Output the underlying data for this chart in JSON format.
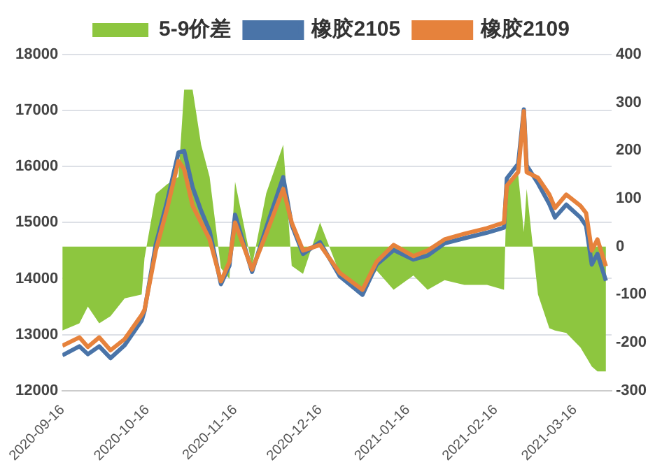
{
  "chart_data": {
    "type": "line",
    "x": [
      "2020-09-16",
      "2020-09-22",
      "2020-09-25",
      "2020-09-29",
      "2020-10-03",
      "2020-10-08",
      "2020-10-14",
      "2020-10-15",
      "2020-10-19",
      "2020-10-23",
      "2020-10-27",
      "2020-10-29",
      "2020-11-01",
      "2020-11-04",
      "2020-11-07",
      "2020-11-11",
      "2020-11-14",
      "2020-11-16",
      "2020-11-22",
      "2020-11-27",
      "2020-12-03",
      "2020-12-06",
      "2020-12-10",
      "2020-12-16",
      "2020-12-23",
      "2020-12-31",
      "2021-01-05",
      "2021-01-11",
      "2021-01-18",
      "2021-01-23",
      "2021-01-29",
      "2021-02-05",
      "2021-02-13",
      "2021-02-19",
      "2021-02-20",
      "2021-02-24",
      "2021-02-26",
      "2021-02-27",
      "2021-03-03",
      "2021-03-07",
      "2021-03-09",
      "2021-03-13",
      "2021-03-18",
      "2021-03-20",
      "2021-03-22",
      "2021-03-24",
      "2021-03-27"
    ],
    "series": [
      {
        "name": "5-9价差",
        "type": "area",
        "axis": "y2",
        "color": "#8dc63f",
        "values": [
          -175,
          -160,
          -125,
          -160,
          -145,
          -108,
          -100,
          -24,
          110,
          130,
          145,
          327,
          327,
          212,
          145,
          -45,
          -67,
          135,
          -40,
          111,
          212,
          -40,
          -57,
          50,
          -57,
          -90,
          -50,
          -90,
          -60,
          -90,
          -70,
          -80,
          -80,
          -90,
          128,
          150,
          30,
          120,
          -100,
          -170,
          -175,
          -180,
          -210,
          -230,
          -250,
          -260,
          -260
        ]
      },
      {
        "name": "橡胶2105",
        "type": "line",
        "color": "#4a74a8",
        "values": [
          12630,
          12790,
          12650,
          12790,
          12580,
          12810,
          13250,
          13420,
          14610,
          15380,
          16250,
          16280,
          15630,
          15210,
          14850,
          13900,
          14230,
          15140,
          14120,
          14910,
          15810,
          14960,
          14440,
          14650,
          14040,
          13710,
          14250,
          14510,
          14340,
          14410,
          14630,
          14720,
          14820,
          14910,
          15790,
          16050,
          17020,
          16020,
          15700,
          15330,
          15090,
          15320,
          15090,
          14940,
          14250,
          14440,
          13960
        ]
      },
      {
        "name": "橡胶2109",
        "type": "line",
        "color": "#e6823c",
        "values": [
          12800,
          12950,
          12780,
          12950,
          12720,
          12920,
          13350,
          13440,
          14500,
          15250,
          16100,
          15950,
          15300,
          15000,
          14700,
          13950,
          14300,
          15000,
          14160,
          14800,
          15600,
          15000,
          14500,
          14600,
          14100,
          13800,
          14300,
          14600,
          14400,
          14500,
          14700,
          14800,
          14900,
          15000,
          15660,
          15900,
          16990,
          15900,
          15800,
          15500,
          15260,
          15500,
          15300,
          15170,
          14500,
          14700,
          14220
        ]
      }
    ],
    "xlim": [
      "2020-09-16",
      "2021-03-29"
    ],
    "xticks": [
      "2020-09-16",
      "2020-10-16",
      "2020-11-16",
      "2020-12-16",
      "2021-01-16",
      "2021-02-16",
      "2021-03-16"
    ],
    "ylim": [
      12000,
      18000
    ],
    "yticks": [
      12000,
      13000,
      14000,
      15000,
      16000,
      17000,
      18000
    ],
    "y2lim": [
      -300,
      400
    ],
    "y2ticks": [
      -300,
      -200,
      -100,
      0,
      100,
      200,
      300,
      400
    ],
    "grid": "y",
    "legend": "top",
    "marker": "none"
  }
}
